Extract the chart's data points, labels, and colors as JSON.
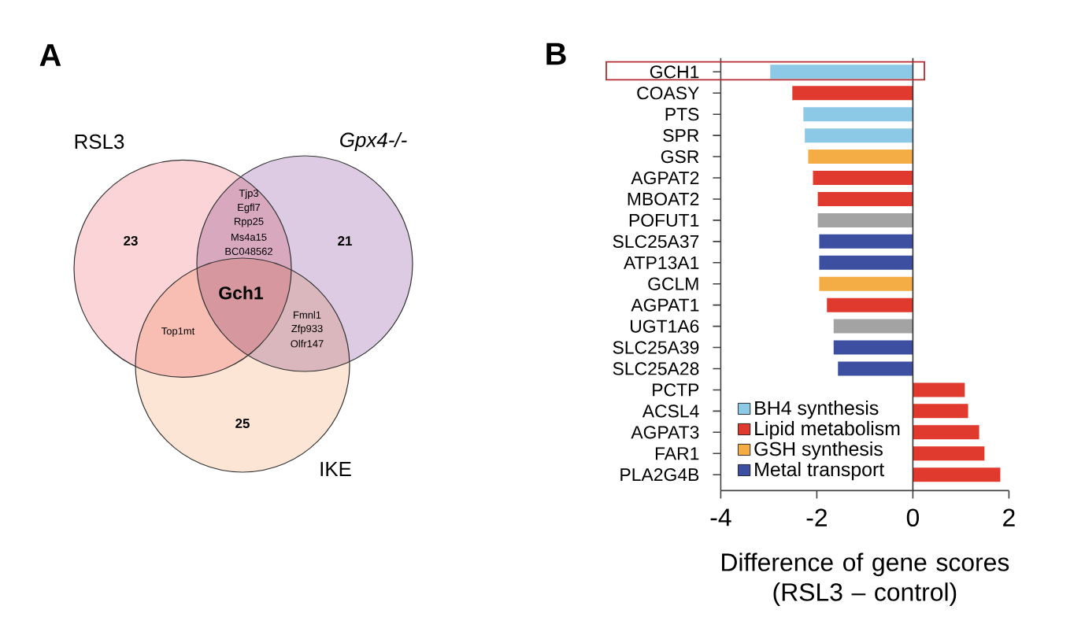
{
  "chart_data": [
    {
      "type": "other",
      "title": "A",
      "categories": [
        "RSL3",
        "Gpx4-/-",
        "IKE"
      ],
      "values": [
        23,
        21,
        25
      ],
      "data_labels": true,
      "colors": [
        "#fad4d6",
        "#dccbe2",
        "#fde5d5"
      ],
      "annotations": [
        "Tjp3",
        "Egfl7",
        "Rpp25",
        "Ms4a15",
        "BC048562",
        "Gch1",
        "Top1mt",
        "Fmnl1",
        "Zfp933",
        "Olfr147"
      ]
    },
    {
      "type": "bar",
      "title": "B",
      "orientation": "horizontal",
      "categories": [
        "GCH1",
        "COASY",
        "PTS",
        "SPR",
        "GSR",
        "AGPAT2",
        "MBOAT2",
        "POFUT1",
        "SLC25A37",
        "ATP13A1",
        "GCLM",
        "AGPAT1",
        "UGT1A6",
        "SLC25A39",
        "SLC25A28",
        "PCTP",
        "ACSL4",
        "AGPAT3",
        "FAR1",
        "PLA2G4B"
      ],
      "series": [
        {
          "name": "BH4 synthesis",
          "color": "#8cc9e6",
          "values": [
            -2.97,
            null,
            -2.28,
            -2.25,
            null,
            null,
            null,
            null,
            null,
            null,
            null,
            null,
            null,
            null,
            null,
            null,
            null,
            null,
            null,
            null
          ]
        },
        {
          "name": "Lipid metabolism",
          "color": "#e03a2e",
          "values": [
            null,
            -2.51,
            null,
            null,
            null,
            -2.08,
            -1.98,
            null,
            null,
            null,
            null,
            -1.79,
            null,
            null,
            null,
            1.08,
            1.15,
            1.38,
            1.49,
            1.82
          ]
        },
        {
          "name": "GSH synthesis",
          "color": "#f4ac45",
          "values": [
            null,
            null,
            null,
            null,
            -2.18,
            null,
            null,
            null,
            null,
            null,
            -1.95,
            null,
            null,
            null,
            null,
            null,
            null,
            null,
            null,
            null
          ]
        },
        {
          "name": "Metal transport",
          "color": "#3d4fa0",
          "values": [
            null,
            null,
            null,
            null,
            null,
            null,
            null,
            null,
            -1.95,
            -1.95,
            null,
            null,
            null,
            -1.65,
            -1.56,
            null,
            null,
            null,
            null,
            null
          ]
        },
        {
          "color": "#a3a3a3",
          "values": [
            null,
            null,
            null,
            null,
            null,
            null,
            null,
            -1.98,
            null,
            null,
            null,
            null,
            -1.65,
            null,
            null,
            null,
            null,
            null,
            null,
            null
          ]
        }
      ],
      "xlim": [
        -4,
        2
      ],
      "xticks": [
        -4,
        -2,
        0,
        2
      ],
      "xlabel": "Difference of gene scores (RSL3 – control)",
      "legend": "bottom left",
      "ref_lines": [
        {
          "axis": "x",
          "value": 0,
          "color": "#333333"
        }
      ]
    }
  ]
}
